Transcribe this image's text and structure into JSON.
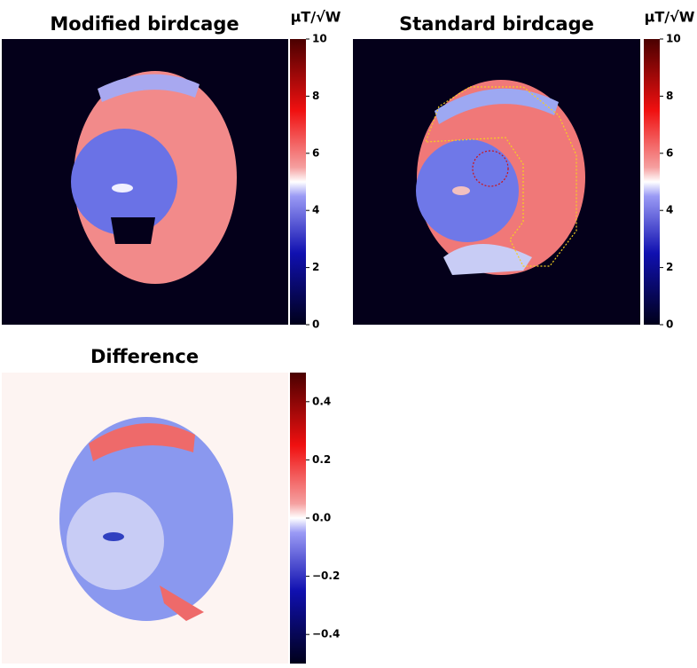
{
  "chart_data": [
    {
      "type": "heatmap",
      "title": "Modified birdcage",
      "colorbar_label": "μT/√W",
      "clim": [
        0,
        10
      ],
      "cticks": [
        0,
        2,
        4,
        6,
        8,
        10
      ]
    },
    {
      "type": "heatmap",
      "title": "Standard birdcage",
      "colorbar_label": "μT/√W",
      "clim": [
        0,
        10
      ],
      "cticks": [
        0,
        2,
        4,
        6,
        8,
        10
      ]
    },
    {
      "type": "heatmap",
      "title": "Difference",
      "clim": [
        -0.5,
        0.5
      ],
      "cticks": [
        {
          "value": -0.4,
          "label": "−0.4"
        },
        {
          "value": -0.2,
          "label": "−0.2"
        },
        {
          "value": 0,
          "label": "0.0"
        },
        0.2,
        0.4
      ]
    }
  ]
}
